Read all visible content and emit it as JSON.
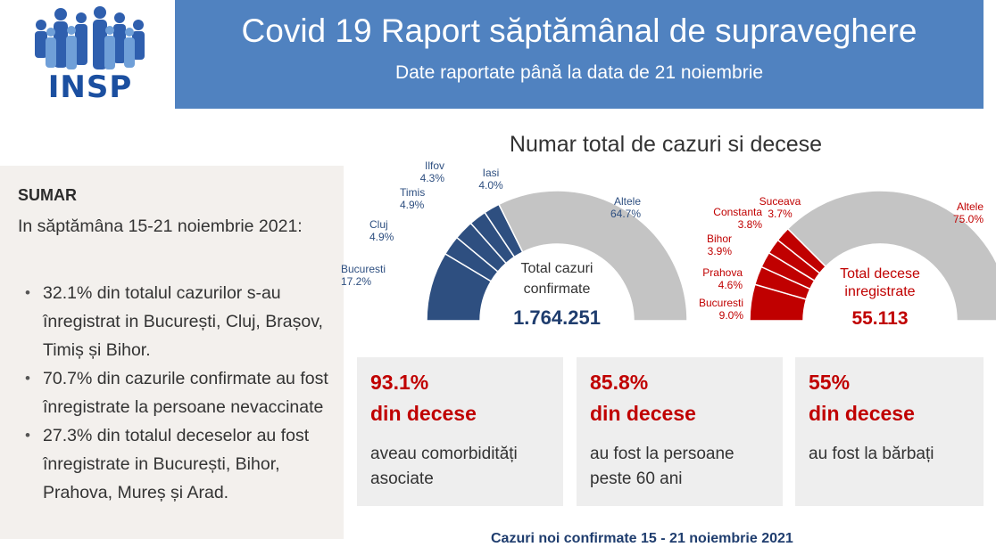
{
  "logo": {
    "text": "INSP"
  },
  "banner": {
    "title": "Covid 19 Raport săptămânal de supraveghere",
    "subtitle": "Date raportate până la data de 21 noiembrie"
  },
  "summary": {
    "heading": "SUMAR",
    "intro": "In săptămâna 15-21 noiembrie 2021:",
    "items": [
      "32.1% din totalul cazurilor s-au înregistrat in București, Cluj, Brașov, Timiș și Bihor.",
      "70.7% din cazurile confirmate au fost înregistrate la persoane nevaccinate",
      "27.3% din totalul deceselor au fost înregistrate in București, Bihor,  Prahova, Mureș și Arad."
    ]
  },
  "charts_title": "Numar total de cazuri si decese",
  "chart_data": [
    {
      "type": "pie",
      "title": "Total cazuri confirmate",
      "center_label": [
        "Total cazuri",
        "confirmate"
      ],
      "total": "1.764.251",
      "slices": [
        {
          "label": "Bucuresti",
          "value": 17.2,
          "text": "17.2%"
        },
        {
          "label": "Cluj",
          "value": 4.9,
          "text": "4.9%"
        },
        {
          "label": "Timis",
          "value": 4.9,
          "text": "4.9%"
        },
        {
          "label": "Ilfov",
          "value": 4.3,
          "text": "4.3%"
        },
        {
          "label": "Iasi",
          "value": 4.0,
          "text": "4.0%"
        },
        {
          "label": "Altele",
          "value": 64.7,
          "text": "64.7%"
        }
      ],
      "colors": {
        "main": "#2e4f80",
        "other": "#c4c4c4",
        "label": "#2e4f80",
        "total": "#1f3d6e"
      }
    },
    {
      "type": "pie",
      "title": "Total decese inregistrate",
      "center_label": [
        "Total decese",
        "inregistrate"
      ],
      "total": "55.113",
      "slices": [
        {
          "label": "Bucuresti",
          "value": 9.0,
          "text": "9.0%"
        },
        {
          "label": "Prahova",
          "value": 4.6,
          "text": "4.6%"
        },
        {
          "label": "Bihor",
          "value": 3.9,
          "text": "3.9%"
        },
        {
          "label": "Constanta",
          "value": 3.8,
          "text": "3.8%"
        },
        {
          "label": "Suceava",
          "value": 3.7,
          "text": "3.7%"
        },
        {
          "label": "Altele",
          "value": 75.0,
          "text": "75.0%"
        }
      ],
      "colors": {
        "main": "#c00000",
        "other": "#c4c4c4",
        "label": "#c00000",
        "total": "#c00000"
      }
    }
  ],
  "stats": [
    {
      "percent": "93.1%",
      "label": "din decese",
      "desc": "aveau comorbidități asociate"
    },
    {
      "percent": "85.8%",
      "label": "din decese",
      "desc": "au fost la persoane peste 60 ani"
    },
    {
      "percent": "55%",
      "label": "din decese",
      "desc": "au fost la bărbați"
    }
  ],
  "footer": {
    "text": "Cazuri noi confirmate 15 - 21 noiembrie 2021"
  }
}
